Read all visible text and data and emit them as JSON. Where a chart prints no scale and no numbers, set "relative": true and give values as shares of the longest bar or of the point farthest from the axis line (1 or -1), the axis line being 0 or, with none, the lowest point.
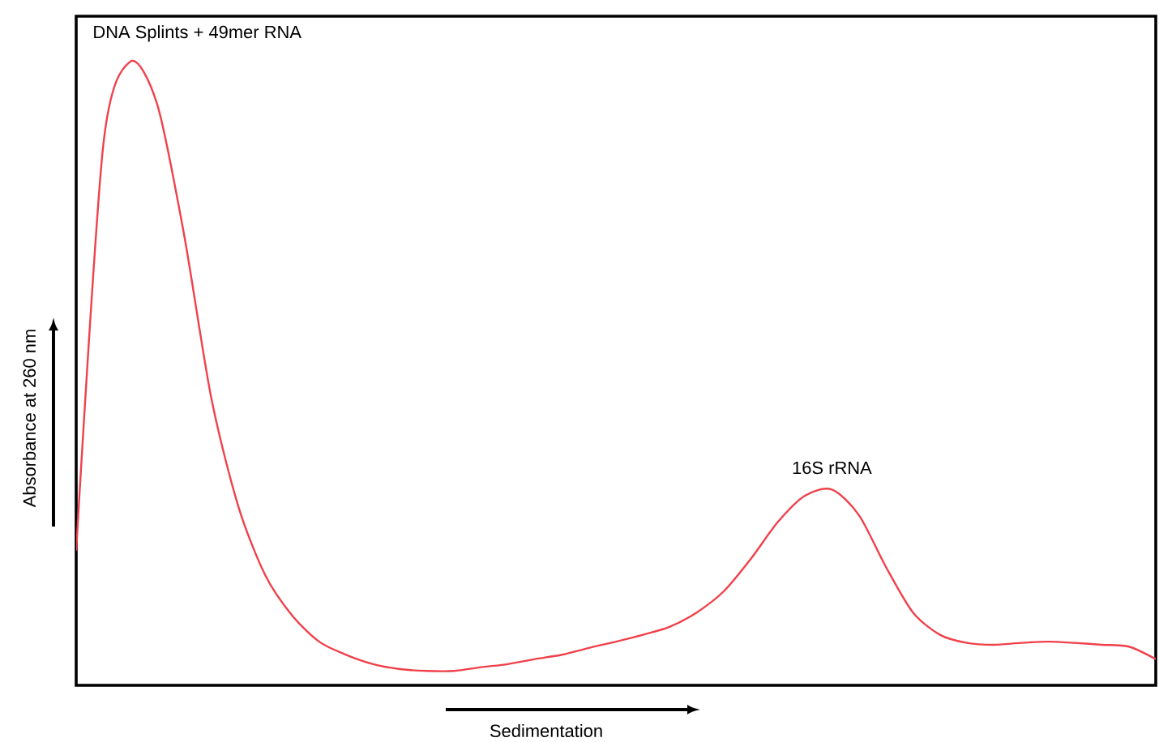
{
  "chart_data": {
    "type": "line",
    "relative": true,
    "xlabel": "Sedimentation",
    "ylabel": "Absorbance at 260 nm",
    "tick_labels": false,
    "annotations": [
      "DNA Splints + 49mer RNA",
      "16S rRNA"
    ],
    "categories": [
      null,
      null,
      null,
      null,
      null,
      null,
      null,
      null,
      null,
      null,
      null,
      null,
      null,
      null,
      null,
      null,
      null,
      null,
      null,
      null,
      null,
      null,
      null,
      null,
      null,
      null,
      null,
      null,
      null,
      null,
      null,
      null,
      null,
      null,
      null,
      null,
      null,
      null,
      null,
      null,
      null
    ],
    "series": [
      {
        "color": "#f0404a",
        "values": [
          0.216,
          0.865,
          1,
          0.932,
          0.722,
          0.462,
          0.288,
          0.177,
          0.112,
          0.07,
          0.049,
          0.034,
          0.026,
          0.023,
          0.023,
          0.029,
          0.034,
          0.042,
          0.049,
          0.06,
          0.07,
          0.081,
          0.094,
          0.117,
          0.151,
          0.203,
          0.262,
          0.304,
          0.314,
          0.273,
          0.19,
          0.117,
          0.081,
          0.068,
          0.065,
          0.068,
          0.07,
          0.068,
          0.065,
          0.062,
          0.042
        ]
      }
    ]
  }
}
